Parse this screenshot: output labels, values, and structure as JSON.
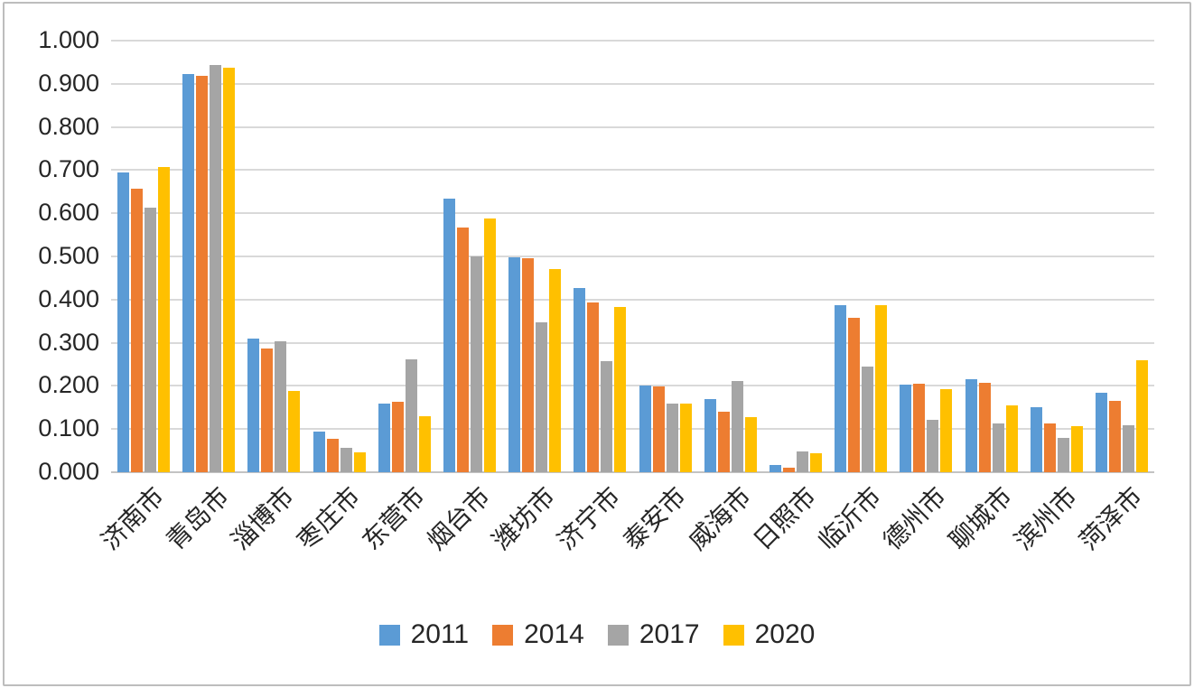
{
  "chart_data": {
    "type": "bar",
    "title": "",
    "xlabel": "",
    "ylabel": "",
    "categories": [
      "济南市",
      "青岛市",
      "淄博市",
      "枣庄市",
      "东营市",
      "烟台市",
      "潍坊市",
      "济宁市",
      "泰安市",
      "威海市",
      "日照市",
      "临沂市",
      "德州市",
      "聊城市",
      "滨州市",
      "菏泽市"
    ],
    "series": [
      {
        "name": "2011",
        "color": "#5B9BD5",
        "values": [
          0.695,
          0.922,
          0.309,
          0.094,
          0.158,
          0.633,
          0.497,
          0.427,
          0.2,
          0.17,
          0.017,
          0.388,
          0.202,
          0.216,
          0.15,
          0.184
        ]
      },
      {
        "name": "2014",
        "color": "#ED7D31",
        "values": [
          0.657,
          0.918,
          0.286,
          0.077,
          0.163,
          0.566,
          0.496,
          0.393,
          0.199,
          0.14,
          0.011,
          0.358,
          0.205,
          0.208,
          0.114,
          0.166
        ]
      },
      {
        "name": "2017",
        "color": "#A5A5A5",
        "values": [
          0.612,
          0.943,
          0.304,
          0.057,
          0.262,
          0.5,
          0.348,
          0.258,
          0.158,
          0.212,
          0.048,
          0.245,
          0.122,
          0.114,
          0.08,
          0.108
        ]
      },
      {
        "name": "2020",
        "color": "#FFC000",
        "values": [
          0.708,
          0.937,
          0.188,
          0.047,
          0.13,
          0.587,
          0.47,
          0.382,
          0.158,
          0.127,
          0.044,
          0.387,
          0.193,
          0.155,
          0.107,
          0.26
        ]
      }
    ],
    "ylim": [
      0,
      1.0
    ],
    "ytick_step": 0.1,
    "ytick_decimals": 3,
    "ytick_labels": [
      "0.000",
      "0.100",
      "0.200",
      "0.300",
      "0.400",
      "0.500",
      "0.600",
      "0.700",
      "0.800",
      "0.900",
      "1.000"
    ],
    "grid": true,
    "legend_position": "bottom",
    "legend_labels": [
      "2011",
      "2014",
      "2017",
      "2020"
    ]
  },
  "colors": {
    "background": "#FFFFFF",
    "gridline": "#D9D9D9",
    "axis_line": "#C3C3C3",
    "text": "#262626",
    "frame_border": "#BDBDBD"
  }
}
